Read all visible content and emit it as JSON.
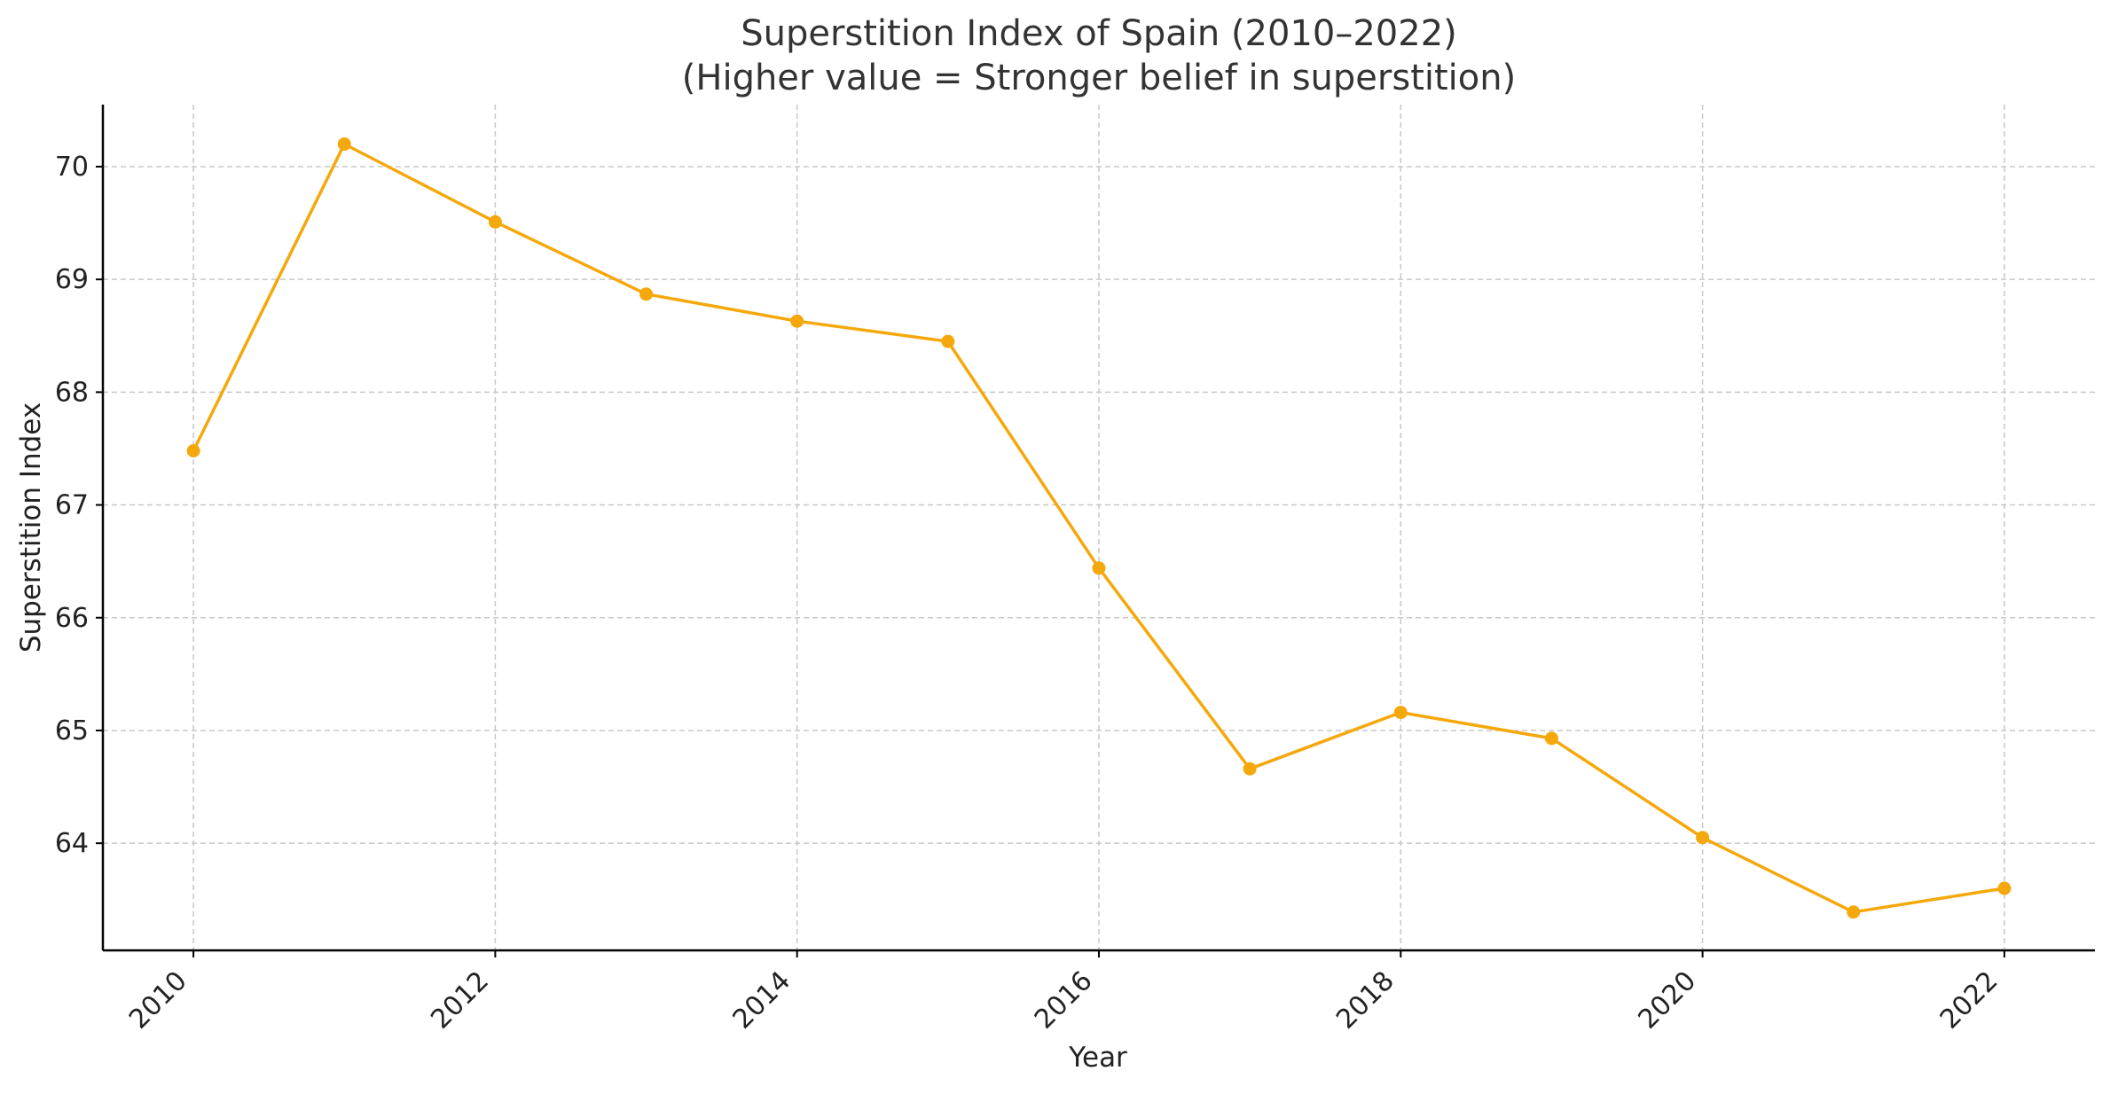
{
  "chart_data": {
    "type": "line",
    "title": "Superstition Index of Spain (2010–2022)",
    "subtitle": "(Higher value = Stronger belief in superstition)",
    "xlabel": "Year",
    "ylabel": "Superstition Index",
    "x": [
      2010,
      2011,
      2012,
      2013,
      2014,
      2015,
      2016,
      2017,
      2018,
      2019,
      2020,
      2021,
      2022
    ],
    "series": [
      {
        "values": [
          67.48,
          70.2,
          69.51,
          68.87,
          68.63,
          68.45,
          66.44,
          64.66,
          65.16,
          64.93,
          64.05,
          63.39,
          63.6
        ],
        "color": "#F5A80C",
        "marker": "circle"
      }
    ],
    "xticks": [
      "2010",
      "2012",
      "2014",
      "2016",
      "2018",
      "2020",
      "2022"
    ],
    "yticks": [
      "64",
      "65",
      "66",
      "67",
      "68",
      "69",
      "70"
    ],
    "xlim": [
      2009.4,
      2022.6
    ],
    "ylim": [
      63.05,
      70.55
    ],
    "grid": true,
    "legend": "none"
  }
}
